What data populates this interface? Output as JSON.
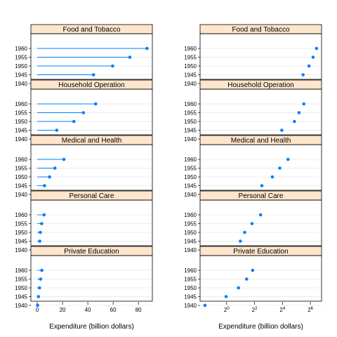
{
  "chart_data": [
    {
      "type": "dotplot",
      "style": "lollipop",
      "x_scale": "linear",
      "xlabel": "Expenditure (billion dollars)",
      "xlim": [
        -5,
        91
      ],
      "xticks": [
        0,
        20,
        40,
        60,
        80
      ],
      "xtick_labels": [
        "0",
        "20",
        "40",
        "60",
        "80"
      ],
      "year_labels": [
        "1960",
        "1955",
        "1950",
        "1945",
        "1940"
      ],
      "color": "#0080ff",
      "strip_color": "#ffe5cc",
      "grid": true,
      "panels": [
        {
          "title": "Food and Tobacco",
          "values": [
            86.8,
            73.2,
            59.6,
            44.5,
            22.2
          ]
        },
        {
          "title": "Household Operation",
          "values": [
            46.2,
            36.5,
            29.0,
            15.5,
            10.5
          ]
        },
        {
          "title": "Medical and Health",
          "values": [
            21.1,
            14.0,
            9.71,
            5.76,
            3.53
          ]
        },
        {
          "title": "Personal Care",
          "values": [
            5.4,
            3.53,
            2.45,
            1.98,
            1.04
          ]
        },
        {
          "title": "Private Education",
          "values": [
            3.64,
            2.7,
            1.8,
            0.974,
            0.341
          ]
        }
      ]
    },
    {
      "type": "dotplot",
      "style": "points",
      "x_scale": "log2",
      "xlabel": "Expenditure (billion dollars)",
      "xlim": [
        -1.9,
        6.8
      ],
      "xticks": [
        0,
        2,
        4,
        6
      ],
      "xtick_labels": [
        "2^0",
        "2^2",
        "2^4",
        "2^6"
      ],
      "year_labels": [
        "1960",
        "1955",
        "1950",
        "1945",
        "1940"
      ],
      "color": "#0080ff",
      "strip_color": "#ffe5cc",
      "grid": true,
      "panels": [
        {
          "title": "Food and Tobacco",
          "values": [
            86.8,
            73.2,
            59.6,
            44.5,
            22.2
          ]
        },
        {
          "title": "Household Operation",
          "values": [
            46.2,
            36.5,
            29.0,
            15.5,
            10.5
          ]
        },
        {
          "title": "Medical and Health",
          "values": [
            21.1,
            14.0,
            9.71,
            5.76,
            3.53
          ]
        },
        {
          "title": "Personal Care",
          "values": [
            5.4,
            3.53,
            2.45,
            1.98,
            1.04
          ]
        },
        {
          "title": "Private Education",
          "values": [
            3.64,
            2.7,
            1.8,
            0.974,
            0.341
          ]
        }
      ]
    }
  ]
}
